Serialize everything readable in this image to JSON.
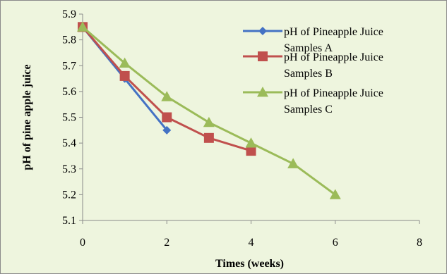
{
  "chart_data": {
    "type": "line",
    "title": "",
    "xlabel": "Times (weeks)",
    "ylabel": "pH of pine apple juice",
    "xlim": [
      0,
      8
    ],
    "ylim": [
      5.1,
      5.9
    ],
    "x_ticks": [
      0,
      2,
      4,
      6,
      8
    ],
    "x_tick_labels": [
      "0",
      "2",
      "4",
      "6",
      "8"
    ],
    "y_ticks": [
      5.1,
      5.2,
      5.3,
      5.4,
      5.5,
      5.6,
      5.7,
      5.8,
      5.9
    ],
    "y_tick_labels": [
      "5.1",
      "5.2",
      "5.3",
      "5.4",
      "5.5",
      "5.6",
      "5.7",
      "5.8",
      "5.9"
    ],
    "grid": false,
    "legend_position": "top-right",
    "series": [
      {
        "name": "pH of Pineapple Juice Samples A",
        "name_lines": [
          "pH of Pineapple Juice",
          "Samples A"
        ],
        "color": "#4472c4",
        "marker": "diamond",
        "x": [
          0,
          1,
          2
        ],
        "y": [
          5.85,
          5.65,
          5.45
        ]
      },
      {
        "name": "pH of Pineapple Juice Samples B",
        "name_lines": [
          "pH of Pineapple Juice",
          "Samples B"
        ],
        "color": "#c0504d",
        "marker": "square",
        "x": [
          0,
          1,
          2,
          3,
          4
        ],
        "y": [
          5.85,
          5.66,
          5.5,
          5.42,
          5.37
        ]
      },
      {
        "name": "pH of Pineapple Juice Samples C",
        "name_lines": [
          "pH of Pineapple Juice",
          "Samples C"
        ],
        "color": "#9bbb59",
        "marker": "triangle",
        "x": [
          0,
          1,
          2,
          3,
          4,
          5,
          6
        ],
        "y": [
          5.85,
          5.71,
          5.58,
          5.48,
          5.4,
          5.32,
          5.2
        ]
      }
    ]
  }
}
